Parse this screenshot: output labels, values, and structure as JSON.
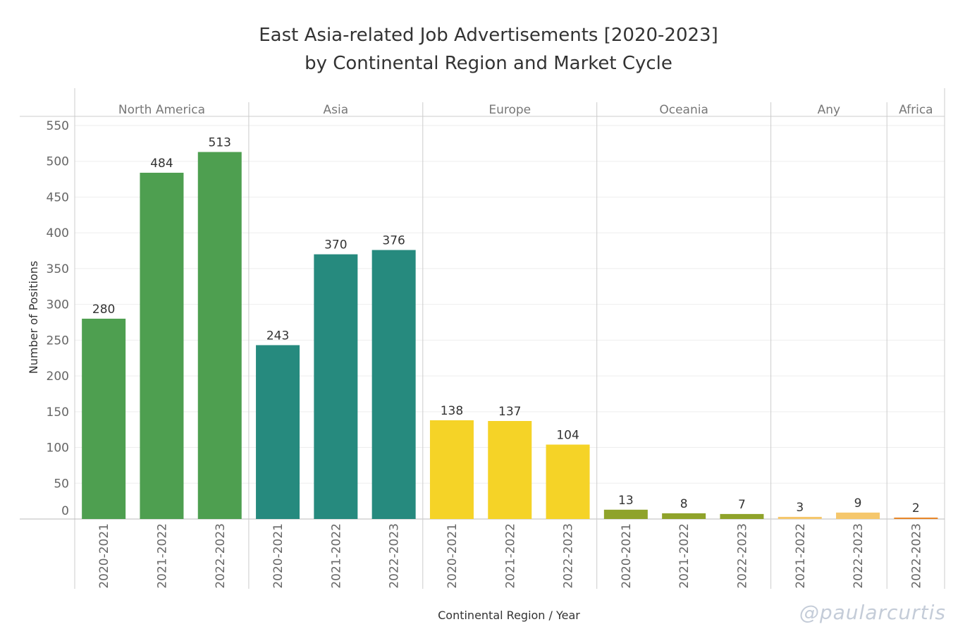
{
  "title_line1": "East Asia-related Job Advertisements [2020-2023]",
  "title_line2": "by Continental Region and Market Cycle",
  "watermark": "@paularcurtis",
  "chart_data": {
    "type": "bar",
    "title": "East Asia-related Job Advertisements [2020-2023] by Continental Region and Market Cycle",
    "xlabel": "Continental Region  /  Year",
    "ylabel": "Number of Positions",
    "ylim": [
      0,
      550
    ],
    "yticks": [
      550,
      500,
      450,
      400,
      350,
      300,
      250,
      200,
      150,
      100,
      50,
      0
    ],
    "grid": true,
    "groups": [
      {
        "name": "North America",
        "color": "#4e9f50",
        "bars": [
          {
            "year": "2020-2021",
            "value": 280
          },
          {
            "year": "2021-2022",
            "value": 484
          },
          {
            "year": "2022-2023",
            "value": 513
          }
        ]
      },
      {
        "name": "Asia",
        "color": "#268a7e",
        "bars": [
          {
            "year": "2020-2021",
            "value": 243
          },
          {
            "year": "2021-2022",
            "value": 370
          },
          {
            "year": "2022-2023",
            "value": 376
          }
        ]
      },
      {
        "name": "Europe",
        "color": "#f5d327",
        "bars": [
          {
            "year": "2020-2021",
            "value": 138
          },
          {
            "year": "2021-2022",
            "value": 137
          },
          {
            "year": "2022-2023",
            "value": 104
          }
        ]
      },
      {
        "name": "Oceania",
        "color": "#8fa32a",
        "bars": [
          {
            "year": "2020-2021",
            "value": 13
          },
          {
            "year": "2021-2022",
            "value": 8
          },
          {
            "year": "2022-2023",
            "value": 7
          }
        ]
      },
      {
        "name": "Any",
        "color": "#f5c76c",
        "bars": [
          {
            "year": "2021-2022",
            "value": 3
          },
          {
            "year": "2022-2023",
            "value": 9
          }
        ]
      },
      {
        "name": "Africa",
        "color": "#e8872a",
        "bars": [
          {
            "year": "2022-2023",
            "value": 2
          }
        ]
      }
    ]
  }
}
